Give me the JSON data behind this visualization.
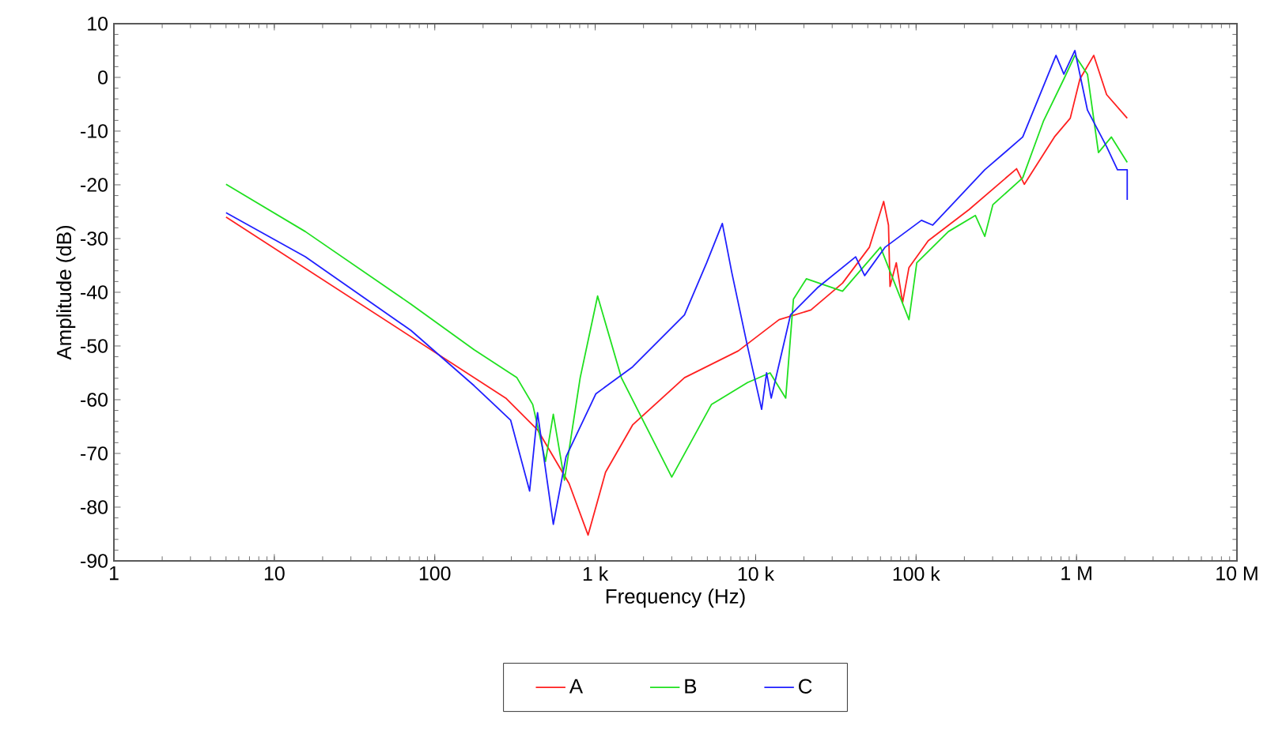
{
  "chart_data": {
    "type": "line",
    "xlabel": "Frequency (Hz)",
    "ylabel": "Amplitude (dB)",
    "log": "x",
    "xlim": [
      1,
      10000000
    ],
    "ylim": [
      -90,
      10
    ],
    "xticks": [
      1,
      10,
      100,
      {
        "value": 1000,
        "label": "1 k"
      },
      {
        "value": 10000,
        "label": "10 k"
      },
      {
        "value": 100000,
        "label": "100 k"
      },
      {
        "value": 1000000,
        "label": "1 M"
      },
      {
        "value": 10000000,
        "label": "10 M"
      }
    ],
    "yticks": [
      -90,
      -80,
      -70,
      -60,
      -50,
      -40,
      -30,
      -20,
      -10,
      0,
      10
    ],
    "grid": false,
    "legend": "bottom",
    "marker": "none",
    "line_style": "solid",
    "series": [
      {
        "name": "A",
        "color": "#ff2020",
        "x": [
          5,
          277,
          437,
          687,
          903,
          1160,
          1710,
          3600,
          7800,
          14000,
          22100,
          34800,
          51200,
          62800,
          67300,
          68800,
          75300,
          82400,
          90300,
          119000,
          214000,
          423000,
          473000,
          728000,
          914000,
          1050000,
          1280000,
          1540000,
          2070000
        ],
        "values": [
          -26.0,
          -59.7,
          -65.6,
          -75.6,
          -85.2,
          -73.5,
          -64.7,
          -55.9,
          -50.9,
          -45.1,
          -43.3,
          -38.3,
          -31.6,
          -23.1,
          -27.5,
          -38.9,
          -34.5,
          -41.9,
          -35.4,
          -30.4,
          -24.6,
          -17.0,
          -19.9,
          -11.1,
          -7.6,
          -0.3,
          4.1,
          -3.2,
          -7.6
        ]
      },
      {
        "name": "B",
        "color": "#20e020",
        "x": [
          5,
          15.6,
          71,
          176,
          325,
          408,
          490,
          548,
          643,
          806,
          1035,
          1455,
          3000,
          5300,
          8900,
          12300,
          15400,
          17200,
          20700,
          34800,
          60000,
          90300,
          101000,
          159000,
          234000,
          268000,
          301000,
          462000,
          621000,
          834000,
          977000,
          1170000,
          1370000,
          1650000,
          2070000
        ],
        "values": [
          -19.9,
          -28.7,
          -42.2,
          -50.7,
          -55.9,
          -60.9,
          -71.5,
          -62.7,
          -75.0,
          -55.9,
          -40.7,
          -55.9,
          -74.4,
          -60.9,
          -56.8,
          -55.0,
          -59.7,
          -41.3,
          -37.5,
          -39.8,
          -31.6,
          -45.1,
          -34.5,
          -28.7,
          -25.7,
          -29.6,
          -23.7,
          -18.7,
          -8.2,
          -0.3,
          4.1,
          0.6,
          -14.0,
          -11.1,
          -15.8
        ]
      },
      {
        "name": "C",
        "color": "#2020ff",
        "x": [
          5,
          15.6,
          71,
          176,
          297,
          390,
          437,
          548,
          658,
          1010,
          1710,
          3600,
          4950,
          6200,
          7100,
          8900,
          10900,
          11700,
          12500,
          16500,
          24200,
          42000,
          47800,
          64200,
          108000,
          127000,
          268000,
          462000,
          745000,
          834000,
          977000,
          1170000,
          1540000,
          1800000,
          2070000,
          2070000
        ],
        "values": [
          -25.2,
          -33.4,
          -47.1,
          -57.4,
          -63.8,
          -77.0,
          -62.4,
          -83.2,
          -70.6,
          -58.9,
          -53.9,
          -44.2,
          -34.5,
          -27.2,
          -36.3,
          -50.1,
          -61.8,
          -55.0,
          -59.7,
          -44.2,
          -39.2,
          -33.4,
          -36.9,
          -31.6,
          -26.6,
          -27.5,
          -17.2,
          -11.1,
          4.1,
          0.6,
          5.0,
          -6.1,
          -12.9,
          -17.2,
          -17.2,
          -22.8
        ]
      }
    ]
  }
}
